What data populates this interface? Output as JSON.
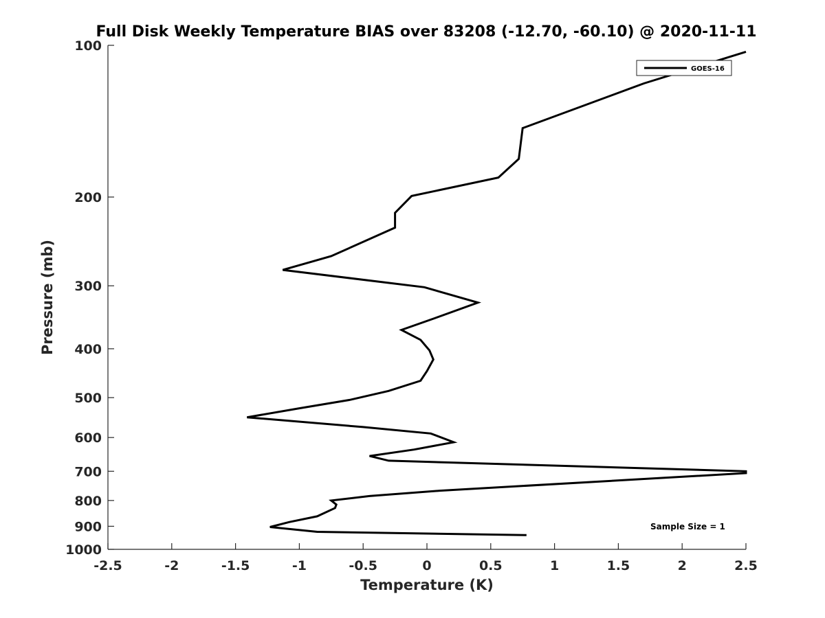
{
  "chart_data": {
    "type": "line",
    "title": "Full Disk Weekly Temperature BIAS over 83208 (-12.70, -60.10) @ 2020-11-11",
    "xlabel": "Temperature (K)",
    "ylabel": "Pressure (mb)",
    "xlim": [
      -2.5,
      2.5
    ],
    "ylim": [
      1000,
      100
    ],
    "y_scale": "log",
    "y_reversed": true,
    "grid": false,
    "x_ticks": [
      -2.5,
      -2,
      -1.5,
      -1,
      -0.5,
      0,
      0.5,
      1,
      1.5,
      2,
      2.5
    ],
    "x_tick_labels": [
      "-2.5",
      "-2",
      "-1.5",
      "-1",
      "-0.5",
      "0",
      "0.5",
      "1",
      "1.5",
      "2",
      "2.5"
    ],
    "y_ticks": [
      100,
      200,
      300,
      400,
      500,
      600,
      700,
      800,
      900,
      1000
    ],
    "y_tick_labels": [
      "100",
      "200",
      "300",
      "400",
      "500",
      "600",
      "700",
      "800",
      "900",
      "1000"
    ],
    "legend": {
      "position": "top-right",
      "entries": [
        "GOES-16"
      ]
    },
    "annotation": "Sample Size = 1",
    "series": [
      {
        "name": "GOES-16",
        "color": "#000000",
        "points": [
          [
            2.5,
            103
          ],
          [
            1.7,
            119
          ],
          [
            0.75,
            146
          ],
          [
            0.72,
            168
          ],
          [
            0.56,
            183
          ],
          [
            -0.12,
            199
          ],
          [
            -0.25,
            215
          ],
          [
            -0.25,
            230
          ],
          [
            -0.75,
            262
          ],
          [
            -1.13,
            279
          ],
          [
            -0.02,
            302
          ],
          [
            0.4,
            324
          ],
          [
            0.06,
            348
          ],
          [
            -0.2,
            367
          ],
          [
            -0.05,
            384
          ],
          [
            0.02,
            403
          ],
          [
            0.05,
            420
          ],
          [
            0.0,
            443
          ],
          [
            -0.05,
            463
          ],
          [
            -0.3,
            485
          ],
          [
            -0.6,
            505
          ],
          [
            -1.0,
            525
          ],
          [
            -1.41,
            547
          ],
          [
            -0.5,
            572
          ],
          [
            0.03,
            589
          ],
          [
            0.21,
            613
          ],
          [
            -0.1,
            634
          ],
          [
            -0.45,
            653
          ],
          [
            -0.3,
            667
          ],
          [
            2.5,
            700
          ],
          [
            2.5,
            706
          ],
          [
            0.1,
            765
          ],
          [
            -0.45,
            784
          ],
          [
            -0.75,
            800
          ],
          [
            -0.71,
            815
          ],
          [
            -0.72,
            828
          ],
          [
            -0.86,
            860
          ],
          [
            -1.08,
            883
          ],
          [
            -1.23,
            903
          ],
          [
            -0.86,
            923
          ],
          [
            0.78,
            937
          ]
        ]
      }
    ]
  }
}
